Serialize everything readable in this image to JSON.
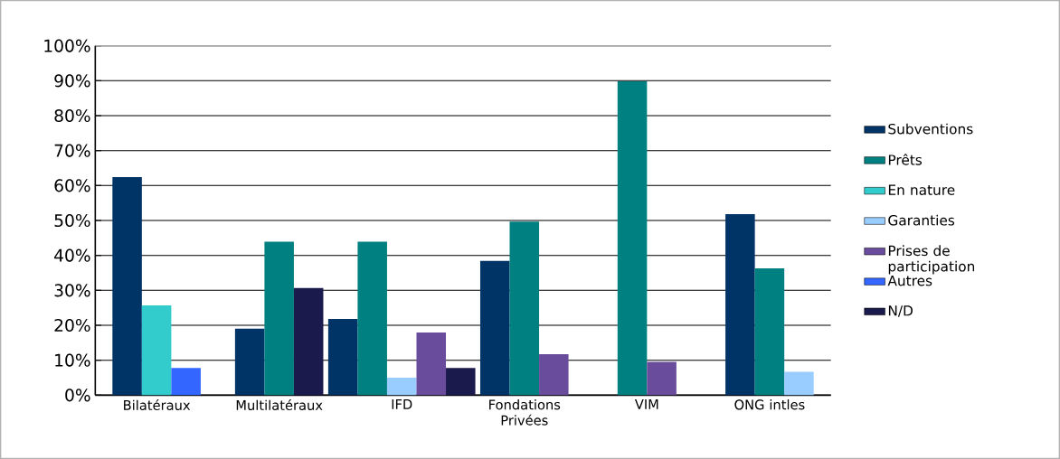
{
  "chart_data": {
    "type": "bar",
    "categories": [
      "Bilatéraux",
      "Multilatéraux",
      "IFD",
      "Fondations Privées",
      "VIM",
      "ONG intles"
    ],
    "series": [
      {
        "name": "Subventions",
        "color": "#003366",
        "values": [
          62.4,
          19.0,
          21.8,
          38.4,
          null,
          51.8
        ]
      },
      {
        "name": "Prêts",
        "color": "#008080",
        "values": [
          null,
          43.9,
          43.9,
          49.7,
          89.8,
          36.3
        ]
      },
      {
        "name": "En nature",
        "color": "#33cccc",
        "values": [
          25.7,
          null,
          null,
          null,
          null,
          null
        ]
      },
      {
        "name": "Garanties",
        "color": "#99ccff",
        "values": [
          null,
          null,
          5.0,
          null,
          null,
          6.7
        ]
      },
      {
        "name": "Prises de participation",
        "color": "#6a4c9c",
        "values": [
          null,
          null,
          17.9,
          11.7,
          9.5,
          null
        ]
      },
      {
        "name": "Autres",
        "color": "#3366ff",
        "values": [
          7.8,
          null,
          null,
          null,
          null,
          null
        ]
      },
      {
        "name": "N/D",
        "color": "#1a1a4d",
        "values": [
          null,
          30.7,
          7.8,
          null,
          null,
          null
        ]
      }
    ],
    "ylim": [
      0,
      100
    ],
    "yticks": [
      {
        "value": 0,
        "label": "0%"
      },
      {
        "value": 10,
        "label": "10%"
      },
      {
        "value": 20,
        "label": "20%"
      },
      {
        "value": 30,
        "label": "30%"
      },
      {
        "value": 40,
        "label": "40%"
      },
      {
        "value": 50,
        "label": "50%"
      },
      {
        "value": 60,
        "label": "60%"
      },
      {
        "value": 70,
        "label": "70%"
      },
      {
        "value": 80,
        "label": "80%"
      },
      {
        "value": 90,
        "label": "90%"
      },
      {
        "value": 100,
        "label": "100%"
      }
    ],
    "grid": "y",
    "legend": "right"
  }
}
